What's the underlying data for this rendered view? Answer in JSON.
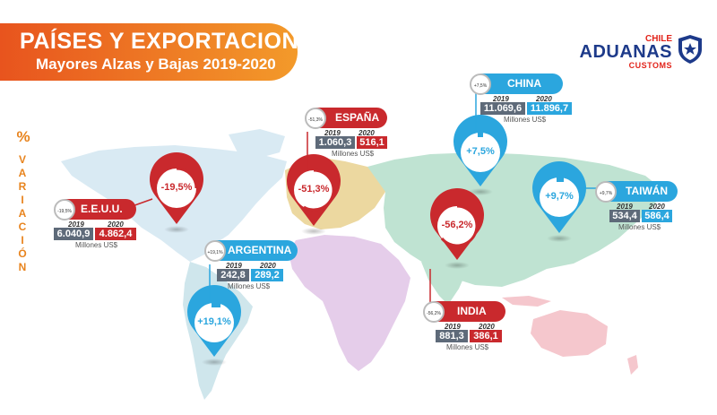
{
  "header": {
    "title": "PAÍSES Y EXPORTACIONES",
    "subtitle": "Mayores Alzas y Bajas 2019-2020"
  },
  "logo": {
    "chile": "CHILE",
    "main": "ADUANAS",
    "customs": "CUSTOMS"
  },
  "side": {
    "percent": "%",
    "word": "VARIACIÓN"
  },
  "colors": {
    "red": "#c9292d",
    "blue": "#2ba6de",
    "gray": "#5e6a79",
    "orange": "#e8541e"
  },
  "countries": [
    {
      "name": "E.E.U.U.",
      "pin": "-19,5%",
      "mini": "-19,5%",
      "year1": "2019",
      "year2": "2020",
      "v2019": "6.040,9",
      "v2020": "4.862,4",
      "unit": "Millones US$"
    },
    {
      "name": "ESPAÑA",
      "pin": "-51,3%",
      "mini": "-51,3%",
      "year1": "2019",
      "year2": "2020",
      "v2019": "1.060,3",
      "v2020": "516,1",
      "unit": "Millones US$"
    },
    {
      "name": "CHINA",
      "pin": "+7,5%",
      "mini": "+7,5%",
      "year1": "2019",
      "year2": "2020",
      "v2019": "11.069,6",
      "v2020": "11.896,7",
      "unit": "Millones US$"
    },
    {
      "name": "TAIWÁN",
      "pin": "+9,7%",
      "mini": "+9,7%",
      "year1": "2019",
      "year2": "2020",
      "v2019": "534,4",
      "v2020": "586,4",
      "unit": "Millones US$"
    },
    {
      "name": "ARGENTINA",
      "pin": "+19,1%",
      "mini": "+19,1%",
      "year1": "2019",
      "year2": "2020",
      "v2019": "242,8",
      "v2020": "289,2",
      "unit": "Millones US$"
    },
    {
      "name": "INDIA",
      "pin": "-56,2%",
      "mini": "-56,2%",
      "year1": "2019",
      "year2": "2020",
      "v2019": "881,3",
      "v2020": "386,1",
      "unit": "Millones US$"
    }
  ]
}
